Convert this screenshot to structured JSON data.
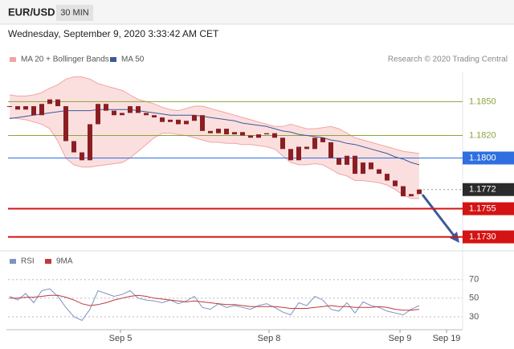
{
  "header": {
    "symbol": "EUR/USD",
    "timeframe": "30 MIN",
    "datetime": "Wednesday, September 9, 2020 3:33:42 AM CET"
  },
  "chart_data": [
    {
      "type": "candlestick",
      "source": "Research © 2020 Trading Central",
      "color": "#8b1e22",
      "values": [
        1.1846,
        1.1843,
        1.1846,
        1.1838,
        1.1848,
        1.1852,
        1.1846,
        1.1815,
        1.1805,
        1.1798,
        1.183,
        1.1848,
        1.1842,
        1.1838,
        1.184,
        1.1846,
        1.184,
        1.1838,
        1.1836,
        1.1832,
        1.1834,
        1.183,
        1.1833,
        1.1838,
        1.1824,
        1.1822,
        1.1826,
        1.1821,
        1.1823,
        1.182,
        1.1818,
        1.1821,
        1.1822,
        1.1818,
        1.1808,
        1.1798,
        1.181,
        1.1808,
        1.1818,
        1.1814,
        1.18,
        1.1794,
        1.1802,
        1.1786,
        1.1796,
        1.179,
        1.1786,
        1.178,
        1.1775,
        1.1766,
        1.1768,
        1.1772
      ],
      "bands": {
        "name": "MA 20 + Bollinger Bands",
        "color": "#f3a3a3",
        "upper": [
          1.1856,
          1.1855,
          1.1855,
          1.1856,
          1.1858,
          1.1862,
          1.1865,
          1.187,
          1.1872,
          1.1872,
          1.187,
          1.1866,
          1.1864,
          1.1862,
          1.186,
          1.1856,
          1.1852,
          1.185,
          1.1848,
          1.1845,
          1.1843,
          1.1842,
          1.1844,
          1.1846,
          1.1846,
          1.1844,
          1.1842,
          1.184,
          1.1838,
          1.1836,
          1.1834,
          1.1832,
          1.183,
          1.1828,
          1.1828,
          1.183,
          1.1828,
          1.1826,
          1.1826,
          1.1827,
          1.1828,
          1.1826,
          1.1822,
          1.1818,
          1.1816,
          1.1814,
          1.1812,
          1.181,
          1.1808,
          1.1806,
          1.1805,
          1.1804
        ],
        "lower": [
          1.1836,
          1.1835,
          1.1834,
          1.1832,
          1.183,
          1.1826,
          1.1815,
          1.18,
          1.1794,
          1.1792,
          1.1792,
          1.1793,
          1.1794,
          1.1795,
          1.1796,
          1.18,
          1.1806,
          1.1812,
          1.1818,
          1.1822,
          1.1822,
          1.1821,
          1.182,
          1.1818,
          1.1816,
          1.1814,
          1.1814,
          1.1813,
          1.1813,
          1.1812,
          1.1812,
          1.1811,
          1.181,
          1.1808,
          1.1802,
          1.1796,
          1.1794,
          1.1794,
          1.1795,
          1.1794,
          1.179,
          1.1786,
          1.1784,
          1.178,
          1.178,
          1.1779,
          1.1778,
          1.1776,
          1.1772,
          1.1767,
          1.1764,
          1.1764
        ]
      },
      "series": [
        {
          "name": "MA 50",
          "color": "#3b5a9c",
          "values": [
            1.1835,
            1.1836,
            1.1837,
            1.1838,
            1.1839,
            1.184,
            1.1841,
            1.1842,
            1.1842,
            1.1842,
            1.1842,
            1.1843,
            1.1843,
            1.1843,
            1.1843,
            1.1843,
            1.1842,
            1.1841,
            1.184,
            1.1839,
            1.1838,
            1.1838,
            1.1838,
            1.1838,
            1.1837,
            1.1836,
            1.1835,
            1.1834,
            1.1833,
            1.1831,
            1.183,
            1.1829,
            1.1828,
            1.1826,
            1.1824,
            1.1823,
            1.1821,
            1.182,
            1.1819,
            1.1818,
            1.1816,
            1.1815,
            1.1813,
            1.1812,
            1.181,
            1.1808,
            1.1806,
            1.1804,
            1.1801,
            1.1799,
            1.1796,
            1.1794
          ]
        }
      ],
      "levels": [
        {
          "value": 1.185,
          "label": "1.1850",
          "color": "#8aa53a",
          "tag": false
        },
        {
          "value": 1.182,
          "label": "1.1820",
          "color": "#8aa53a",
          "tag": false
        },
        {
          "value": 1.18,
          "label": "1.1800",
          "color": "#2f6fe0",
          "tag": true
        },
        {
          "value": 1.1772,
          "label": "1.1772",
          "color": "#2b2b2b",
          "tag": true
        },
        {
          "value": 1.1755,
          "label": "1.1755",
          "color": "#d41414",
          "tag": true
        },
        {
          "value": 1.173,
          "label": "1.1730",
          "color": "#d41414",
          "tag": true
        }
      ],
      "xlim": [
        -0.2,
        56.4
      ],
      "ylim": [
        1.1719,
        1.1876
      ]
    },
    {
      "type": "line",
      "series": [
        {
          "name": "RSI",
          "color": "#7d93c4",
          "values": [
            52,
            48,
            55,
            45,
            58,
            60,
            52,
            40,
            30,
            26,
            38,
            58,
            55,
            52,
            54,
            58,
            50,
            48,
            47,
            45,
            48,
            44,
            47,
            52,
            40,
            38,
            44,
            40,
            42,
            40,
            38,
            42,
            44,
            40,
            35,
            32,
            45,
            42,
            52,
            48,
            38,
            36,
            45,
            34,
            46,
            42,
            40,
            36,
            34,
            32,
            38,
            42
          ]
        },
        {
          "name": "9MA",
          "color": "#c0393b",
          "values": [
            50,
            50,
            51,
            51,
            52,
            53,
            53,
            51,
            48,
            44,
            42,
            43,
            45,
            48,
            50,
            52,
            53,
            52,
            50,
            49,
            48,
            47,
            46,
            47,
            46,
            45,
            44,
            43,
            43,
            42,
            41,
            41,
            41,
            41,
            40,
            39,
            39,
            39,
            40,
            41,
            42,
            41,
            41,
            40,
            40,
            40,
            41,
            40,
            38,
            37,
            37,
            38
          ]
        }
      ],
      "xlim": [
        -0.2,
        56.4
      ],
      "ylim": [
        16,
        81
      ],
      "yticks": [
        30,
        50,
        70
      ],
      "xticks": [
        {
          "value": 13.8,
          "label": "Sep 5"
        },
        {
          "value": 32.3,
          "label": "Sep 8"
        },
        {
          "value": 48.6,
          "label": "Sep 9"
        },
        {
          "value": 54.4,
          "label": "Sep 19"
        }
      ]
    }
  ]
}
